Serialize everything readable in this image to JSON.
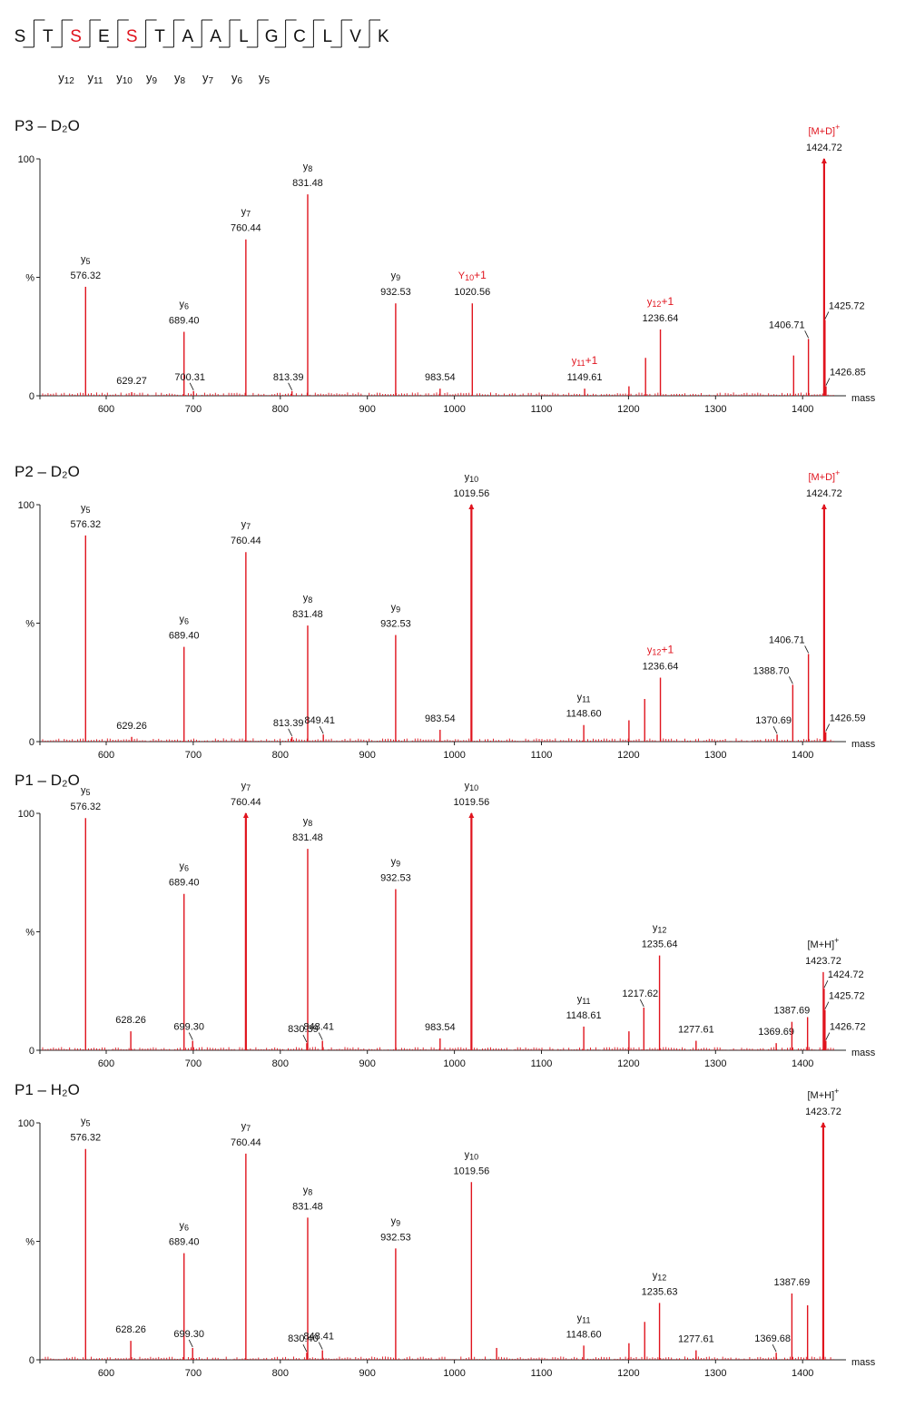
{
  "sequence": {
    "residues": [
      "S",
      "T",
      "S",
      "E",
      "S",
      "T",
      "A",
      "A",
      "L",
      "G",
      "C",
      "L",
      "V",
      "K"
    ],
    "highlighted": [
      2,
      4
    ],
    "y_ions": [
      {
        "name": "y",
        "n": "12"
      },
      {
        "name": "y",
        "n": "11"
      },
      {
        "name": "y",
        "n": "10"
      },
      {
        "name": "y",
        "n": "9"
      },
      {
        "name": "y",
        "n": "8"
      },
      {
        "name": "y",
        "n": "7"
      },
      {
        "name": "y",
        "n": "6"
      },
      {
        "name": "y",
        "n": "5"
      }
    ]
  },
  "colors": {
    "peak": "#e0141e",
    "highlight": "#e0141e",
    "text": "#111111",
    "axis": "#222222"
  },
  "chart_data": [
    {
      "type": "bar",
      "title": "P3 – D₂O",
      "xlabel": "mass",
      "ylabel": "%",
      "xlim": [
        525,
        1445
      ],
      "ylim": [
        0,
        100
      ],
      "xticks": [
        600,
        700,
        800,
        900,
        1000,
        1100,
        1200,
        1300,
        1400
      ],
      "yticks": [
        {
          "v": 0,
          "t": "0"
        },
        {
          "v": 50,
          "t": "%"
        },
        {
          "v": 100,
          "t": "100"
        }
      ],
      "peaks": [
        {
          "x": 576.32,
          "y": 46,
          "label": "576.32",
          "ion": "y",
          "ionN": "5"
        },
        {
          "x": 629.27,
          "y": 1.5,
          "label": "629.27"
        },
        {
          "x": 689.4,
          "y": 27,
          "label": "689.40",
          "ion": "y",
          "ionN": "6"
        },
        {
          "x": 700.31,
          "y": 2,
          "label": "700.31",
          "leader": true
        },
        {
          "x": 760.44,
          "y": 66,
          "label": "760.44",
          "ion": "y",
          "ionN": "7"
        },
        {
          "x": 813.39,
          "y": 2,
          "label": "813.39",
          "leader": true
        },
        {
          "x": 831.48,
          "y": 85,
          "label": "831.48",
          "ion": "y",
          "ionN": "8"
        },
        {
          "x": 932.53,
          "y": 39,
          "label": "932.53",
          "ion": "y",
          "ionN": "9"
        },
        {
          "x": 983.54,
          "y": 3,
          "label": "983.54"
        },
        {
          "x": 1020.56,
          "y": 39,
          "label": "1020.56",
          "ion": "Y",
          "ionN": "10",
          "ionSuffix": "+1",
          "red": true
        },
        {
          "x": 1149.61,
          "y": 3,
          "label": "1149.61",
          "ion": "y",
          "ionN": "11",
          "ionSuffix": "+1",
          "red": true
        },
        {
          "x": 1200.5,
          "y": 4
        },
        {
          "x": 1219.6,
          "y": 16
        },
        {
          "x": 1236.64,
          "y": 28,
          "label": "1236.64",
          "ion": "y",
          "ionN": "12",
          "ionSuffix": "+1",
          "red": true
        },
        {
          "x": 1389.7,
          "y": 17
        },
        {
          "x": 1406.71,
          "y": 24,
          "label": "1406.71",
          "leader": true
        },
        {
          "x": 1424.72,
          "y": 100,
          "label": "1424.72",
          "ion": "[M+D]",
          "ionSuffix": "+",
          "red": true,
          "arrow": true
        },
        {
          "x": 1425.72,
          "y": 32,
          "label": "1425.72",
          "leader": true
        },
        {
          "x": 1426.85,
          "y": 4,
          "label": "1426.85",
          "leader": true
        }
      ]
    },
    {
      "type": "bar",
      "title": "P2 – D₂O",
      "xlabel": "mass",
      "ylabel": "%",
      "xlim": [
        525,
        1445
      ],
      "ylim": [
        0,
        100
      ],
      "xticks": [
        600,
        700,
        800,
        900,
        1000,
        1100,
        1200,
        1300,
        1400
      ],
      "yticks": [
        {
          "v": 0,
          "t": "0"
        },
        {
          "v": 50,
          "t": "%"
        },
        {
          "v": 100,
          "t": "100"
        }
      ],
      "peaks": [
        {
          "x": 576.32,
          "y": 87,
          "label": "576.32",
          "ion": "y",
          "ionN": "5"
        },
        {
          "x": 629.26,
          "y": 2,
          "label": "629.26"
        },
        {
          "x": 689.4,
          "y": 40,
          "label": "689.40",
          "ion": "y",
          "ionN": "6"
        },
        {
          "x": 760.44,
          "y": 80,
          "label": "760.44",
          "ion": "y",
          "ionN": "7"
        },
        {
          "x": 813.39,
          "y": 2,
          "label": "813.39",
          "leader": true
        },
        {
          "x": 831.48,
          "y": 49,
          "label": "831.48",
          "ion": "y",
          "ionN": "8"
        },
        {
          "x": 849.41,
          "y": 3,
          "label": "849.41",
          "leader": true
        },
        {
          "x": 932.53,
          "y": 45,
          "label": "932.53",
          "ion": "y",
          "ionN": "9"
        },
        {
          "x": 983.54,
          "y": 5,
          "label": "983.54"
        },
        {
          "x": 1019.56,
          "y": 100,
          "label": "1019.56",
          "ion": "y",
          "ionN": "10",
          "arrow": true
        },
        {
          "x": 1148.6,
          "y": 7,
          "label": "1148.60",
          "ion": "y",
          "ionN": "11"
        },
        {
          "x": 1200.5,
          "y": 9
        },
        {
          "x": 1218.6,
          "y": 18
        },
        {
          "x": 1236.64,
          "y": 27,
          "label": "1236.64",
          "ion": "y",
          "ionN": "12",
          "ionSuffix": "+1",
          "red": true
        },
        {
          "x": 1370.69,
          "y": 3,
          "label": "1370.69",
          "leader": true
        },
        {
          "x": 1388.7,
          "y": 24,
          "label": "1388.70",
          "leader": true
        },
        {
          "x": 1406.71,
          "y": 37,
          "label": "1406.71",
          "leader": true
        },
        {
          "x": 1424.72,
          "y": 100,
          "label": "1424.72",
          "ion": "[M+D]",
          "ionSuffix": "+",
          "red": true,
          "arrow": true
        },
        {
          "x": 1426.59,
          "y": 4,
          "label": "1426.59",
          "leader": true
        }
      ]
    },
    {
      "type": "bar",
      "title": "P1 – D₂O",
      "xlabel": "mass",
      "ylabel": "%",
      "xlim": [
        525,
        1445
      ],
      "ylim": [
        0,
        100
      ],
      "xticks": [
        600,
        700,
        800,
        900,
        1000,
        1100,
        1200,
        1300,
        1400
      ],
      "yticks": [
        {
          "v": 0,
          "t": "0"
        },
        {
          "v": 50,
          "t": "%"
        },
        {
          "v": 100,
          "t": "100"
        }
      ],
      "peaks": [
        {
          "x": 576.32,
          "y": 98,
          "label": "576.32",
          "ion": "y",
          "ionN": "5"
        },
        {
          "x": 628.26,
          "y": 8,
          "label": "628.26"
        },
        {
          "x": 689.4,
          "y": 66,
          "label": "689.40",
          "ion": "y",
          "ionN": "6"
        },
        {
          "x": 699.3,
          "y": 4,
          "label": "699.30",
          "leader": true
        },
        {
          "x": 760.44,
          "y": 100,
          "label": "760.44",
          "ion": "y",
          "ionN": "7",
          "arrow": true
        },
        {
          "x": 830.39,
          "y": 3,
          "label": "830.39",
          "leader": true
        },
        {
          "x": 831.48,
          "y": 85,
          "label": "831.48",
          "ion": "y",
          "ionN": "8"
        },
        {
          "x": 848.41,
          "y": 4,
          "label": "848.41",
          "leader": true
        },
        {
          "x": 932.53,
          "y": 68,
          "label": "932.53",
          "ion": "y",
          "ionN": "9"
        },
        {
          "x": 983.54,
          "y": 5,
          "label": "983.54"
        },
        {
          "x": 1019.56,
          "y": 100,
          "label": "1019.56",
          "ion": "y",
          "ionN": "10",
          "arrow": true
        },
        {
          "x": 1148.61,
          "y": 10,
          "label": "1148.61",
          "ion": "y",
          "ionN": "11"
        },
        {
          "x": 1200.5,
          "y": 8
        },
        {
          "x": 1217.62,
          "y": 18,
          "label": "1217.62",
          "leader": true
        },
        {
          "x": 1235.64,
          "y": 40,
          "label": "1235.64",
          "ion": "y",
          "ionN": "12"
        },
        {
          "x": 1277.61,
          "y": 4,
          "label": "1277.61"
        },
        {
          "x": 1369.69,
          "y": 3,
          "label": "1369.69"
        },
        {
          "x": 1387.69,
          "y": 12,
          "label": "1387.69"
        },
        {
          "x": 1405.7,
          "y": 14
        },
        {
          "x": 1423.72,
          "y": 33,
          "label": "1423.72",
          "ion": "[M+H]",
          "ionSuffix": "+"
        },
        {
          "x": 1424.72,
          "y": 26,
          "label": "1424.72",
          "leader": true
        },
        {
          "x": 1425.72,
          "y": 17,
          "label": "1425.72",
          "leader": true
        },
        {
          "x": 1426.72,
          "y": 4,
          "label": "1426.72",
          "leader": true
        }
      ]
    },
    {
      "type": "bar",
      "title": "P1 – H₂O",
      "xlabel": "mass",
      "ylabel": "%",
      "xlim": [
        525,
        1445
      ],
      "ylim": [
        0,
        100
      ],
      "xticks": [
        600,
        700,
        800,
        900,
        1000,
        1100,
        1200,
        1300,
        1400
      ],
      "yticks": [
        {
          "v": 0,
          "t": "0"
        },
        {
          "v": 50,
          "t": "%"
        },
        {
          "v": 100,
          "t": "100"
        }
      ],
      "peaks": [
        {
          "x": 576.32,
          "y": 89,
          "label": "576.32",
          "ion": "y",
          "ionN": "5"
        },
        {
          "x": 628.26,
          "y": 8,
          "label": "628.26"
        },
        {
          "x": 689.4,
          "y": 45,
          "label": "689.40",
          "ion": "y",
          "ionN": "6"
        },
        {
          "x": 699.3,
          "y": 5,
          "label": "699.30",
          "leader": true
        },
        {
          "x": 760.44,
          "y": 87,
          "label": "760.44",
          "ion": "y",
          "ionN": "7"
        },
        {
          "x": 830.4,
          "y": 3,
          "label": "830.40",
          "leader": true
        },
        {
          "x": 831.48,
          "y": 60,
          "label": "831.48",
          "ion": "y",
          "ionN": "8"
        },
        {
          "x": 848.41,
          "y": 4,
          "label": "848.41",
          "leader": true
        },
        {
          "x": 932.53,
          "y": 47,
          "label": "932.53",
          "ion": "y",
          "ionN": "9"
        },
        {
          "x": 1019.56,
          "y": 75,
          "label": "1019.56",
          "ion": "y",
          "ionN": "10"
        },
        {
          "x": 1048.5,
          "y": 5
        },
        {
          "x": 1148.6,
          "y": 6,
          "label": "1148.60",
          "ion": "y",
          "ionN": "11"
        },
        {
          "x": 1200.5,
          "y": 7
        },
        {
          "x": 1218.6,
          "y": 16
        },
        {
          "x": 1235.63,
          "y": 24,
          "label": "1235.63",
          "ion": "y",
          "ionN": "12"
        },
        {
          "x": 1277.61,
          "y": 4,
          "label": "1277.61"
        },
        {
          "x": 1369.68,
          "y": 3,
          "label": "1369.68",
          "leader": true
        },
        {
          "x": 1387.69,
          "y": 28,
          "label": "1387.69"
        },
        {
          "x": 1405.7,
          "y": 23
        },
        {
          "x": 1423.72,
          "y": 100,
          "label": "1423.72",
          "ion": "[M+H]",
          "ionSuffix": "+",
          "arrow": true
        }
      ]
    }
  ]
}
